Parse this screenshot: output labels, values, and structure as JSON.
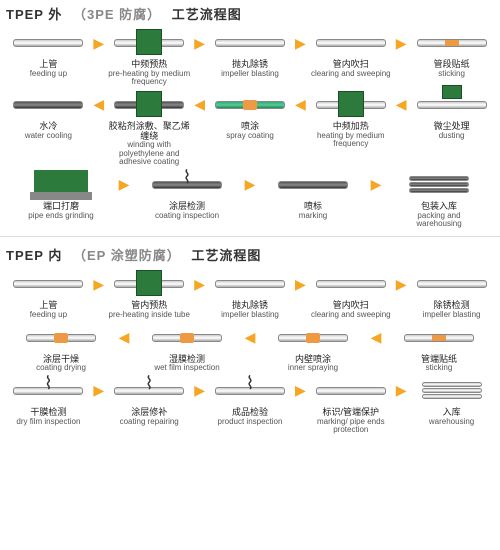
{
  "colors": {
    "arrow": "#f5a623",
    "green_box": "#2d7a3d",
    "pipe_light": "#cccccc",
    "pipe_dark": "#555555",
    "accent_orange": "#ee9944",
    "title_dark": "#333333",
    "title_gray": "#888888"
  },
  "section1": {
    "title_pre": "TPEP 外",
    "title_mid": "（3PE 防腐）",
    "title_post": "工艺流程图",
    "row1": [
      {
        "cn": "上管",
        "en": "feeding up"
      },
      {
        "cn": "中频预热",
        "en": "pre-heating by medium frequency"
      },
      {
        "cn": "抛丸除锈",
        "en": "impeller blasting"
      },
      {
        "cn": "管内吹扫",
        "en": "clearing and sweeping"
      },
      {
        "cn": "管段贴纸",
        "en": "sticking"
      }
    ],
    "row2": [
      {
        "cn": "水冷",
        "en": "water cooling"
      },
      {
        "cn": "胶粘剂涂敷、聚乙烯缠绕",
        "en": "winding with polyethylene and adhesive coating"
      },
      {
        "cn": "喷涂",
        "en": "spray coating"
      },
      {
        "cn": "中频加热",
        "en": "heating by medium frequency"
      },
      {
        "cn": "微尘处理",
        "en": "dusting"
      }
    ],
    "row3": [
      {
        "cn": "端口打磨",
        "en": "pipe ends grinding"
      },
      {
        "cn": "涂层检测",
        "en": "coating inspection"
      },
      {
        "cn": "喷标",
        "en": "marking"
      },
      {
        "cn": "包装入库",
        "en": "packing and warehousing"
      }
    ]
  },
  "section2": {
    "title_pre": "TPEP 内",
    "title_mid": "（EP 涂塑防腐）",
    "title_post": "工艺流程图",
    "row1": [
      {
        "cn": "上管",
        "en": "feeding up"
      },
      {
        "cn": "管内预热",
        "en": "pre-heating inside tube"
      },
      {
        "cn": "抛丸除锈",
        "en": "impeller blasting"
      },
      {
        "cn": "管内吹扫",
        "en": "clearing and sweeping"
      },
      {
        "cn": "除锈检测",
        "en": "impeller blasting"
      }
    ],
    "row2": [
      {
        "cn": "涂层干燥",
        "en": "coating drying"
      },
      {
        "cn": "湿膜检测",
        "en": "wet film inspection"
      },
      {
        "cn": "内壁喷涂",
        "en": "inner spraying"
      },
      {
        "cn": "管端贴纸",
        "en": "sticking"
      }
    ],
    "row3": [
      {
        "cn": "干膜检测",
        "en": "dry film inspection"
      },
      {
        "cn": "涂层修补",
        "en": "coating repairing"
      },
      {
        "cn": "成品检验",
        "en": "product inspection"
      },
      {
        "cn": "标识/管端保护",
        "en": "marking/ pipe ends protection"
      },
      {
        "cn": "入库",
        "en": "warehousing"
      }
    ]
  }
}
